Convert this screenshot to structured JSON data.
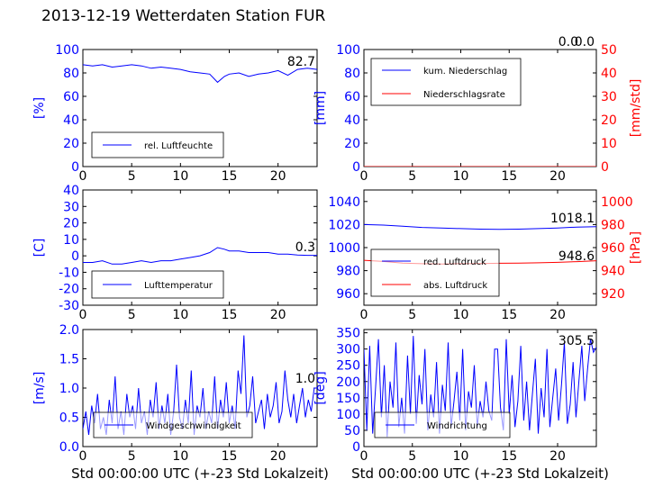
{
  "title": "2013-12-19 Wetterdaten Station FUR",
  "chart_data": [
    {
      "type": "line",
      "xlim": [
        0,
        24
      ],
      "xticks": [
        0,
        5,
        10,
        15,
        20
      ],
      "ylabel": "[%]",
      "ylim": [
        0,
        100
      ],
      "yticks": [
        0,
        20,
        40,
        60,
        80,
        100
      ],
      "last_value": "82.7",
      "legend_position": "lower-left",
      "series": [
        {
          "name": "rel. Luftfeuchte",
          "color": "#0000ff",
          "x": [
            0,
            1,
            2,
            3,
            4,
            5,
            6,
            7,
            8,
            9,
            10,
            11,
            12,
            13,
            13.8,
            14.5,
            15,
            16,
            17,
            18,
            19,
            20,
            21,
            22,
            23,
            24
          ],
          "y": [
            87,
            86,
            87,
            85,
            86,
            87,
            86,
            84,
            85,
            84,
            83,
            81,
            80,
            79,
            72,
            77,
            79,
            80,
            77,
            79,
            80,
            82,
            78,
            83,
            84,
            83
          ]
        }
      ]
    },
    {
      "type": "line",
      "xlim": [
        0,
        24
      ],
      "xticks": [
        0,
        5,
        10,
        15,
        20
      ],
      "ylabel": "[mm]",
      "ylim": [
        0,
        100
      ],
      "yticks": [
        0,
        20,
        40,
        60,
        80,
        100
      ],
      "ylabel_right": "[mm/std]",
      "ylim_right": [
        0,
        50
      ],
      "yticks_right": [
        0,
        10,
        20,
        30,
        40,
        50
      ],
      "last_value": "0.0",
      "last_value_2": "0.0",
      "legend_position": "upper-left",
      "series": [
        {
          "name": "kum. Niederschlag",
          "color": "#0000ff",
          "axis": "left",
          "x": [
            0,
            24
          ],
          "y": [
            0,
            0
          ]
        },
        {
          "name": "Niederschlagsrate",
          "color": "#ff0000",
          "axis": "right",
          "x": [
            0,
            24
          ],
          "y": [
            0,
            0
          ]
        }
      ]
    },
    {
      "type": "line",
      "xlim": [
        0,
        24
      ],
      "xticks": [
        0,
        5,
        10,
        15,
        20
      ],
      "ylabel": "[C]",
      "ylim": [
        -30,
        40
      ],
      "yticks": [
        -30,
        -20,
        -10,
        0,
        10,
        20,
        30,
        40
      ],
      "last_value": "0.3",
      "legend_position": "lower-left",
      "series": [
        {
          "name": "Lufttemperatur",
          "color": "#0000ff",
          "x": [
            0,
            1,
            2,
            3,
            4,
            5,
            6,
            7,
            8,
            9,
            10,
            11,
            12,
            13,
            13.8,
            14.5,
            15,
            16,
            17,
            18,
            19,
            20,
            21,
            22,
            23,
            24
          ],
          "y": [
            -4,
            -4,
            -3,
            -5,
            -5,
            -4,
            -3,
            -4,
            -3,
            -3,
            -2,
            -1,
            0,
            2,
            5,
            4,
            3,
            3,
            2,
            2,
            2,
            1,
            1,
            0.5,
            0.3,
            0.3
          ]
        }
      ]
    },
    {
      "type": "line",
      "xlim": [
        0,
        24
      ],
      "xticks": [
        0,
        5,
        10,
        15,
        20
      ],
      "ylabel_right": "[hPa]",
      "ylim": [
        950,
        1050
      ],
      "yticks": [
        960,
        980,
        1000,
        1020,
        1040
      ],
      "ylim_right": [
        910,
        1010
      ],
      "yticks_right": [
        920,
        940,
        960,
        980,
        1000
      ],
      "last_value": "1018.1",
      "last_value_2": "948.6",
      "legend_position": "lower-left",
      "series": [
        {
          "name": "red. Luftdruck",
          "color": "#0000ff",
          "axis": "left",
          "x": [
            0,
            2,
            4,
            6,
            8,
            10,
            12,
            14,
            16,
            18,
            20,
            22,
            24
          ],
          "y": [
            1020,
            1019.5,
            1018.5,
            1017.5,
            1017,
            1016.5,
            1016,
            1015.8,
            1016,
            1016.5,
            1017,
            1017.8,
            1018.1
          ]
        },
        {
          "name": "abs. Luftdruck",
          "color": "#ff0000",
          "axis": "right",
          "x": [
            0,
            2,
            4,
            6,
            8,
            10,
            12,
            14,
            16,
            18,
            20,
            22,
            24
          ],
          "y": [
            949,
            948,
            946.5,
            946,
            945.8,
            946,
            946.2,
            946.4,
            946.5,
            946.8,
            947.2,
            947.8,
            948.6
          ]
        }
      ]
    },
    {
      "type": "line",
      "xlabel": "Std 00:00:00 UTC (+-23 Std Lokalzeit)",
      "xlim": [
        0,
        24
      ],
      "xticks": [
        0,
        5,
        10,
        15,
        20
      ],
      "ylabel": "[m/s]",
      "ylim": [
        0,
        2
      ],
      "yticks": [
        0.0,
        0.5,
        1.0,
        1.5,
        2.0
      ],
      "last_value": "1.0",
      "legend_position": "lower-center",
      "series": [
        {
          "name": "Windgeschwindigkeit",
          "color": "#0000ff",
          "x": [
            0.0,
            0.3,
            0.6,
            0.9,
            1.2,
            1.5,
            1.8,
            2.1,
            2.4,
            2.7,
            3.0,
            3.3,
            3.6,
            3.9,
            4.2,
            4.5,
            4.8,
            5.1,
            5.4,
            5.7,
            6.0,
            6.3,
            6.6,
            6.9,
            7.2,
            7.5,
            7.8,
            8.1,
            8.4,
            8.7,
            9.0,
            9.3,
            9.6,
            9.9,
            10.2,
            10.5,
            10.8,
            11.1,
            11.4,
            11.7,
            12.0,
            12.3,
            12.6,
            12.9,
            13.2,
            13.5,
            13.8,
            14.1,
            14.4,
            14.7,
            15.0,
            15.3,
            15.6,
            15.9,
            16.2,
            16.5,
            16.8,
            17.1,
            17.4,
            17.7,
            18.0,
            18.3,
            18.6,
            18.9,
            19.2,
            19.5,
            19.8,
            20.1,
            20.4,
            20.7,
            21.0,
            21.3,
            21.6,
            21.9,
            22.2,
            22.5,
            22.8,
            23.1,
            23.4,
            23.7,
            24.0
          ],
          "y": [
            0.3,
            0.6,
            0.2,
            0.7,
            0.4,
            0.9,
            0.3,
            0.5,
            0.2,
            0.8,
            0.4,
            1.2,
            0.3,
            0.6,
            0.2,
            0.9,
            0.5,
            0.7,
            0.3,
            1.0,
            0.4,
            0.6,
            0.2,
            0.8,
            0.5,
            1.1,
            0.3,
            0.7,
            0.4,
            0.9,
            0.2,
            0.6,
            1.4,
            0.5,
            0.3,
            0.8,
            0.4,
            1.3,
            0.2,
            0.7,
            0.5,
            1.0,
            0.3,
            0.6,
            0.4,
            1.2,
            0.3,
            0.8,
            0.5,
            1.1,
            0.4,
            0.7,
            0.3,
            1.3,
            0.9,
            1.9,
            0.5,
            0.7,
            1.2,
            0.4,
            0.6,
            0.8,
            0.3,
            0.9,
            0.5,
            0.7,
            1.1,
            0.4,
            0.6,
            1.3,
            0.8,
            0.5,
            0.9,
            0.4,
            0.7,
            1.0,
            0.5,
            0.8,
            0.6,
            1.0,
            1.0
          ]
        }
      ]
    },
    {
      "type": "line",
      "xlabel": "Std 00:00:00 UTC (+-23 Std Lokalzeit)",
      "xlim": [
        0,
        24
      ],
      "xticks": [
        0,
        5,
        10,
        15,
        20
      ],
      "ylabel": "[deg]",
      "ylim": [
        0,
        360
      ],
      "yticks": [
        0,
        50,
        100,
        150,
        200,
        250,
        300,
        350
      ],
      "last_value": "305.5",
      "legend_position": "lower-center",
      "series": [
        {
          "name": "Windrichtung",
          "color": "#0000ff",
          "x": [
            0.0,
            0.3,
            0.6,
            0.9,
            1.2,
            1.5,
            1.8,
            2.1,
            2.4,
            2.7,
            3.0,
            3.3,
            3.6,
            3.9,
            4.2,
            4.5,
            4.8,
            5.1,
            5.4,
            5.7,
            6.0,
            6.3,
            6.6,
            6.9,
            7.2,
            7.5,
            7.8,
            8.1,
            8.4,
            8.7,
            9.0,
            9.3,
            9.6,
            9.9,
            10.2,
            10.5,
            10.8,
            11.1,
            11.4,
            11.7,
            12.0,
            12.3,
            12.6,
            12.9,
            13.2,
            13.5,
            13.8,
            14.1,
            14.4,
            14.7,
            15.0,
            15.3,
            15.6,
            15.9,
            16.2,
            16.5,
            16.8,
            17.1,
            17.4,
            17.7,
            18.0,
            18.3,
            18.6,
            18.9,
            19.2,
            19.5,
            19.8,
            20.1,
            20.4,
            20.7,
            21.0,
            21.3,
            21.6,
            21.9,
            22.2,
            22.5,
            22.8,
            23.1,
            23.4,
            23.7,
            24.0
          ],
          "y": [
            300,
            50,
            310,
            40,
            180,
            330,
            90,
            250,
            30,
            200,
            120,
            320,
            60,
            150,
            40,
            280,
            100,
            340,
            70,
            220,
            130,
            300,
            50,
            160,
            90,
            260,
            40,
            190,
            110,
            320,
            60,
            140,
            230,
            80,
            300,
            50,
            170,
            120,
            250,
            60,
            140,
            90,
            200,
            110,
            80,
            300,
            300,
            120,
            50,
            330,
            100,
            220,
            60,
            140,
            310,
            80,
            200,
            50,
            160,
            270,
            40,
            180,
            90,
            300,
            60,
            150,
            240,
            80,
            190,
            320,
            70,
            130,
            260,
            90,
            200,
            310,
            140,
            240,
            330,
            290,
            305.5
          ]
        }
      ]
    }
  ]
}
